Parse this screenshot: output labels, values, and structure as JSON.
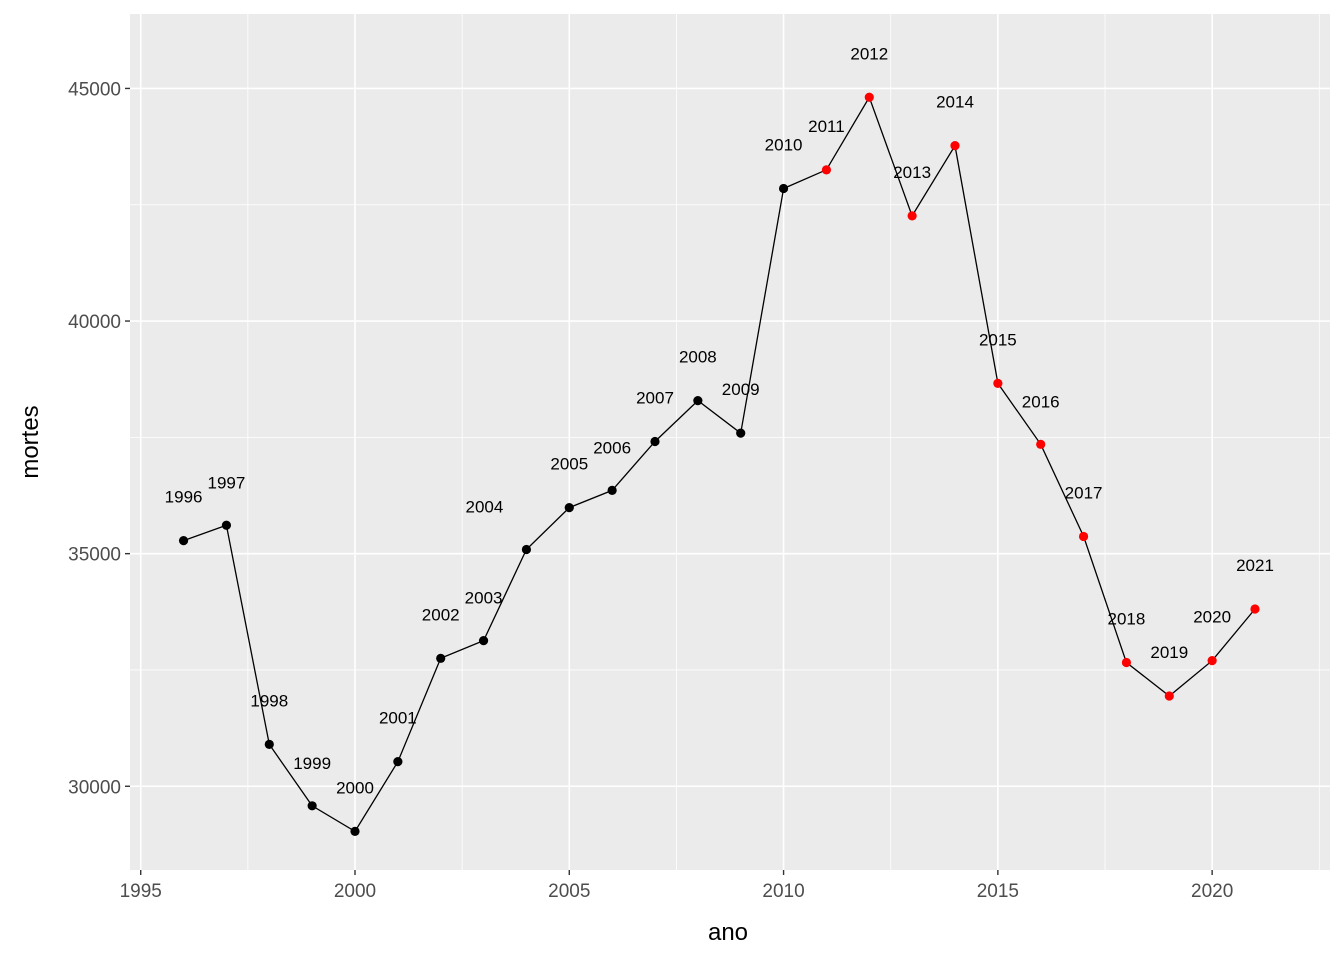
{
  "chart_data": {
    "type": "line",
    "title": "",
    "xlabel": "ano",
    "ylabel": "mortes",
    "xlim": [
      1994.75,
      2022.75
    ],
    "ylim": [
      28200,
      46600
    ],
    "x_ticks": [
      1995,
      2000,
      2005,
      2010,
      2015,
      2020
    ],
    "x_tick_labels": [
      "1995",
      "2000",
      "2005",
      "2010",
      "2015",
      "2020"
    ],
    "y_ticks": [
      30000,
      35000,
      40000,
      45000
    ],
    "y_tick_labels": [
      "30000",
      "35000",
      "40000",
      "45000"
    ],
    "grid": true,
    "panel_background": "#ebebeb",
    "grid_color": "#ffffff",
    "line_color": "#000000",
    "point_colors": {
      "black": "#000000",
      "red": "#ff0000"
    },
    "points": [
      {
        "x": 1996,
        "y": 35280,
        "label": "1996",
        "color": "black"
      },
      {
        "x": 1997,
        "y": 35610,
        "label": "1997",
        "color": "black"
      },
      {
        "x": 1998,
        "y": 30900,
        "label": "1998",
        "color": "black"
      },
      {
        "x": 1999,
        "y": 29580,
        "label": "1999",
        "color": "black"
      },
      {
        "x": 2000,
        "y": 29030,
        "label": "2000",
        "color": "black"
      },
      {
        "x": 2001,
        "y": 30530,
        "label": "2001",
        "color": "black"
      },
      {
        "x": 2002,
        "y": 32750,
        "label": "2002",
        "color": "black"
      },
      {
        "x": 2003,
        "y": 33130,
        "label": "2003",
        "color": "black"
      },
      {
        "x": 2004,
        "y": 35090,
        "label": "2004",
        "color": "black"
      },
      {
        "x": 2005,
        "y": 35990,
        "label": "2005",
        "color": "black"
      },
      {
        "x": 2006,
        "y": 36360,
        "label": "2006",
        "color": "black"
      },
      {
        "x": 2007,
        "y": 37410,
        "label": "2007",
        "color": "black"
      },
      {
        "x": 2008,
        "y": 38290,
        "label": "2008",
        "color": "black"
      },
      {
        "x": 2009,
        "y": 37590,
        "label": "2009",
        "color": "black"
      },
      {
        "x": 2010,
        "y": 42850,
        "label": "2010",
        "color": "black"
      },
      {
        "x": 2011,
        "y": 43250,
        "label": "2011",
        "color": "red"
      },
      {
        "x": 2012,
        "y": 44810,
        "label": "2012",
        "color": "red"
      },
      {
        "x": 2013,
        "y": 42260,
        "label": "2013",
        "color": "red"
      },
      {
        "x": 2014,
        "y": 43770,
        "label": "2014",
        "color": "red"
      },
      {
        "x": 2015,
        "y": 38660,
        "label": "2015",
        "color": "red"
      },
      {
        "x": 2016,
        "y": 37350,
        "label": "2016",
        "color": "red"
      },
      {
        "x": 2017,
        "y": 35370,
        "label": "2017",
        "color": "red"
      },
      {
        "x": 2018,
        "y": 32660,
        "label": "2018",
        "color": "red"
      },
      {
        "x": 2019,
        "y": 31940,
        "label": "2019",
        "color": "red"
      },
      {
        "x": 2020,
        "y": 32700,
        "label": "2020",
        "color": "red"
      },
      {
        "x": 2021,
        "y": 33810,
        "label": "2021",
        "color": "red"
      }
    ]
  }
}
